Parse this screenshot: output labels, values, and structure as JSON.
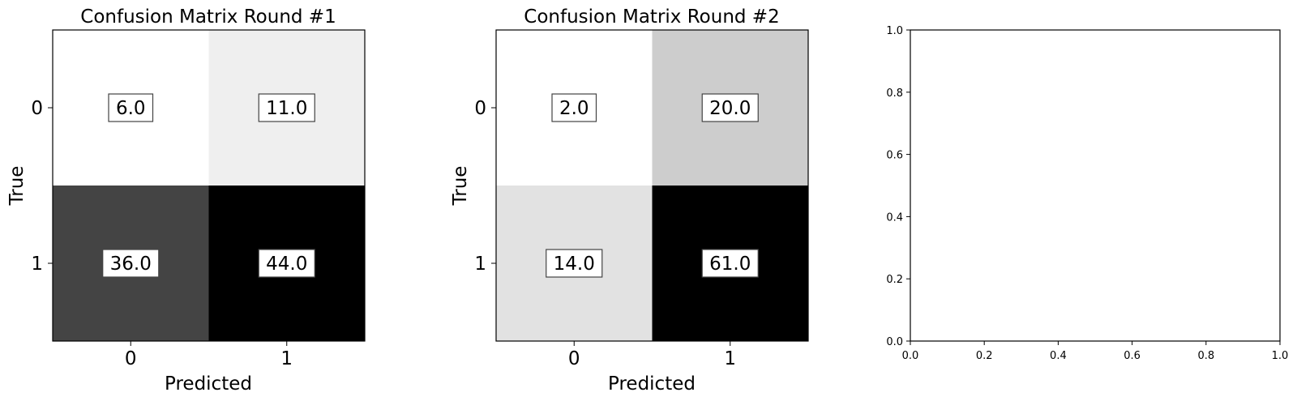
{
  "chart_data": [
    {
      "type": "heatmap",
      "title": "Confusion Matrix Round #1",
      "xlabel": "Predicted",
      "ylabel": "True",
      "x_ticks": [
        "0",
        "1"
      ],
      "y_ticks": [
        "0",
        "1"
      ],
      "values": [
        [
          6.0,
          11.0
        ],
        [
          36.0,
          44.0
        ]
      ],
      "labels": [
        [
          "6.0",
          "11.0"
        ],
        [
          "36.0",
          "44.0"
        ]
      ],
      "colormap": "Greys",
      "color_range": [
        6.0,
        44.0
      ]
    },
    {
      "type": "heatmap",
      "title": "Confusion Matrix Round #2",
      "xlabel": "Predicted",
      "ylabel": "True",
      "x_ticks": [
        "0",
        "1"
      ],
      "y_ticks": [
        "0",
        "1"
      ],
      "values": [
        [
          2.0,
          20.0
        ],
        [
          14.0,
          61.0
        ]
      ],
      "labels": [
        [
          "2.0",
          "20.0"
        ],
        [
          "14.0",
          "61.0"
        ]
      ],
      "colormap": "Greys",
      "color_range": [
        2.0,
        61.0
      ]
    },
    {
      "type": "empty",
      "xlim": [
        0.0,
        1.0
      ],
      "ylim": [
        0.0,
        1.0
      ],
      "x_ticks": [
        "0.0",
        "0.2",
        "0.4",
        "0.6",
        "0.8",
        "1.0"
      ],
      "y_ticks": [
        "0.0",
        "0.2",
        "0.4",
        "0.6",
        "0.8",
        "1.0"
      ]
    }
  ]
}
